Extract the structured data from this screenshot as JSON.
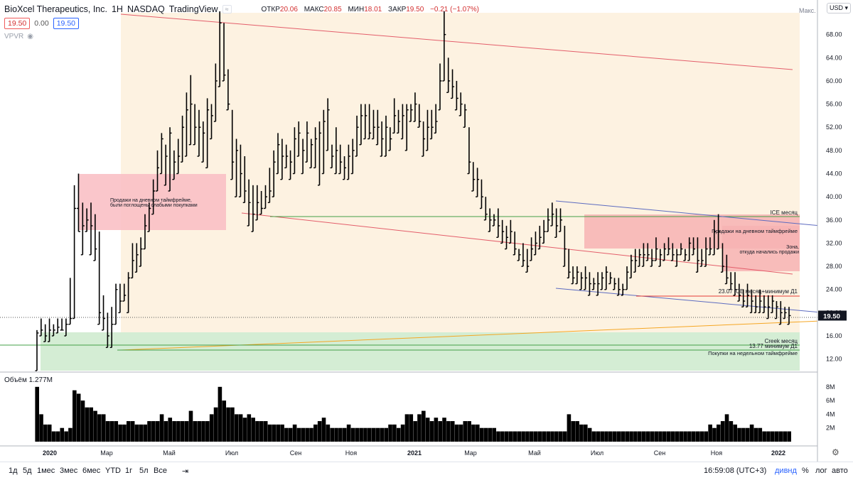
{
  "header": {
    "symbol": "BioXcel Therapeutics, Inc.",
    "interval": "1H",
    "exchange": "NASDAQ",
    "platform": "TradingView",
    "open_label": "ОТКР",
    "open": "20.06",
    "high_label": "МАКС",
    "high": "20.85",
    "low_label": "МИН",
    "low": "18.01",
    "close_label": "ЗАКР",
    "close": "19.50",
    "change": "−0.21 (−1.07%)"
  },
  "pills": {
    "bid": "19.50",
    "spread": "0.00",
    "ask": "19.50"
  },
  "vpvr_label": "VPVR",
  "volume_label": "Объём",
  "volume_value": "1.277M",
  "currency": "USD",
  "max_label": "Макс.",
  "toolbar": {
    "timeframes": [
      "1д",
      "5д",
      "1мес",
      "3мес",
      "6мес",
      "YTD",
      "1г",
      "5л",
      "Все"
    ],
    "clock": "16:59:08 (UTC+3)",
    "dividend": "дивнд",
    "percent": "%",
    "log": "лог",
    "auto": "авто"
  },
  "chart_data": {
    "type": "bar",
    "title": "BioXcel Therapeutics, Inc. · 1H · NASDAQ",
    "ylim": [
      10,
      72
    ],
    "price_ticks": [
      "12.00",
      "16.00",
      "20.00",
      "24.00",
      "28.00",
      "32.00",
      "36.00",
      "40.00",
      "44.00",
      "48.00",
      "52.00",
      "56.00",
      "60.00",
      "64.00",
      "68.00"
    ],
    "volume_ticks": [
      "2M",
      "4M",
      "6M",
      "8M"
    ],
    "x_ticks": [
      "2020",
      "Мар",
      "Май",
      "Июл",
      "Сен",
      "Ноя",
      "2021",
      "Мар",
      "Май",
      "Июл",
      "Сен",
      "Ноя",
      "2022"
    ],
    "last_price": "19.50",
    "bars": [
      [
        10,
        17,
        16.5,
        8
      ],
      [
        16,
        19,
        17,
        4
      ],
      [
        15,
        18,
        16,
        2.5
      ],
      [
        15,
        19,
        17,
        2.5
      ],
      [
        16,
        18,
        17,
        1.5
      ],
      [
        16.5,
        19,
        17.5,
        1.5
      ],
      [
        17,
        19,
        17,
        2
      ],
      [
        16,
        19,
        18,
        1.5
      ],
      [
        18,
        26,
        19,
        2
      ],
      [
        19,
        42,
        38,
        7.5
      ],
      [
        38,
        44,
        34,
        7
      ],
      [
        30,
        39,
        35,
        6
      ],
      [
        34,
        38,
        36,
        5
      ],
      [
        30,
        39,
        35,
        5
      ],
      [
        29,
        37,
        31,
        4.5
      ],
      [
        18,
        34,
        20,
        4
      ],
      [
        17,
        23,
        19,
        4
      ],
      [
        14,
        20,
        16,
        3
      ],
      [
        14,
        21,
        18,
        3
      ],
      [
        18,
        25,
        24,
        3
      ],
      [
        20,
        25,
        22,
        2.5
      ],
      [
        22,
        25,
        23,
        2.5
      ],
      [
        20,
        27,
        26,
        3
      ],
      [
        26,
        32,
        29,
        3
      ],
      [
        27,
        32,
        30,
        2.5
      ],
      [
        28,
        33,
        31,
        2.5
      ],
      [
        31,
        37,
        35,
        2.5
      ],
      [
        34,
        39,
        38,
        3
      ],
      [
        37,
        43,
        41,
        3
      ],
      [
        41,
        48,
        45,
        3
      ],
      [
        44,
        51,
        50,
        4
      ],
      [
        42,
        49,
        47,
        3
      ],
      [
        41,
        52,
        51,
        3.5
      ],
      [
        43,
        48,
        46,
        3
      ],
      [
        44,
        50,
        47,
        3
      ],
      [
        46,
        54,
        52,
        3
      ],
      [
        47,
        58,
        55,
        3
      ],
      [
        49,
        61,
        56,
        4.5
      ],
      [
        49,
        56,
        52,
        3
      ],
      [
        47,
        55,
        52,
        3
      ],
      [
        46,
        53,
        51,
        3
      ],
      [
        45,
        57,
        55,
        3
      ],
      [
        50,
        56,
        54,
        4
      ],
      [
        53,
        63,
        60,
        5
      ],
      [
        59,
        72,
        70,
        8
      ],
      [
        60,
        70,
        61,
        6
      ],
      [
        55,
        62,
        56,
        5
      ],
      [
        43,
        55,
        46,
        5
      ],
      [
        40,
        50,
        48,
        4
      ],
      [
        40,
        49,
        44,
        4
      ],
      [
        39,
        47,
        41,
        3.5
      ],
      [
        35,
        43,
        39,
        4
      ],
      [
        34,
        42,
        37,
        3.5
      ],
      [
        36,
        42,
        39,
        3
      ],
      [
        37,
        41,
        38,
        3
      ],
      [
        38,
        42,
        40,
        3
      ],
      [
        39,
        45,
        41,
        2.5
      ],
      [
        40,
        48,
        46,
        2.5
      ],
      [
        44,
        51,
        49,
        2.5
      ],
      [
        43,
        50,
        47,
        2.5
      ],
      [
        45,
        49,
        47,
        2
      ],
      [
        43,
        48,
        46,
        2
      ],
      [
        44,
        52,
        50,
        2.5
      ],
      [
        47,
        53,
        51,
        2
      ],
      [
        44,
        50,
        48,
        2
      ],
      [
        46,
        53,
        51,
        2
      ],
      [
        45,
        50,
        49,
        2
      ],
      [
        45,
        52,
        50,
        2.5
      ],
      [
        42,
        53,
        51,
        3
      ],
      [
        44,
        55,
        53,
        3.5
      ],
      [
        48,
        57,
        55,
        2.5
      ],
      [
        45,
        49,
        47,
        2
      ],
      [
        44,
        52,
        48,
        2
      ],
      [
        44,
        49,
        46,
        2
      ],
      [
        43,
        47,
        45,
        2
      ],
      [
        43,
        49,
        47,
        2.5
      ],
      [
        44,
        50,
        48,
        2
      ],
      [
        47,
        54,
        52,
        2
      ],
      [
        49,
        56,
        54,
        2
      ],
      [
        50,
        56,
        54,
        2
      ],
      [
        50,
        56,
        51,
        2
      ],
      [
        50,
        55,
        52,
        2
      ],
      [
        49,
        55,
        52,
        2
      ],
      [
        47,
        53,
        50,
        2
      ],
      [
        47,
        54,
        52,
        2
      ],
      [
        48,
        52,
        50,
        2.5
      ],
      [
        51,
        57,
        54,
        2.5
      ],
      [
        51,
        55,
        53,
        2
      ],
      [
        50,
        56,
        54,
        2.5
      ],
      [
        48,
        56,
        55,
        4
      ],
      [
        53,
        56,
        55,
        4
      ],
      [
        53,
        58,
        56,
        3
      ],
      [
        52,
        56,
        53,
        4
      ],
      [
        47,
        53,
        50,
        4.5
      ],
      [
        48,
        55,
        52,
        3.5
      ],
      [
        50,
        55,
        52,
        3
      ],
      [
        51,
        56,
        53,
        3.5
      ],
      [
        55,
        63,
        60,
        3
      ],
      [
        60,
        72,
        68,
        3.5
      ],
      [
        58,
        64,
        60,
        3
      ],
      [
        57,
        62,
        59,
        3
      ],
      [
        55,
        60,
        57,
        2.5
      ],
      [
        54,
        58,
        56,
        2.5
      ],
      [
        52,
        56,
        55,
        3
      ],
      [
        44,
        52,
        46,
        3
      ],
      [
        41,
        46,
        43,
        2.5
      ],
      [
        40,
        45,
        43,
        2.5
      ],
      [
        38,
        43,
        40,
        2
      ],
      [
        36,
        40,
        37,
        2
      ],
      [
        34,
        38,
        36,
        2
      ],
      [
        35,
        37,
        36,
        2
      ],
      [
        33,
        38,
        35,
        1.5
      ],
      [
        32,
        36,
        34,
        1.5
      ],
      [
        31,
        35,
        33,
        1.5
      ],
      [
        32,
        36,
        34,
        1.5
      ],
      [
        30,
        34,
        31,
        1.5
      ],
      [
        29,
        31,
        30,
        1.5
      ],
      [
        28,
        32,
        29,
        1.5
      ],
      [
        27,
        31,
        28,
        1.5
      ],
      [
        29,
        33,
        31,
        1.5
      ],
      [
        30,
        34,
        32,
        1.5
      ],
      [
        31,
        35,
        33,
        1.5
      ],
      [
        32,
        36,
        34,
        1.5
      ],
      [
        34,
        38,
        36,
        1.5
      ],
      [
        35,
        39,
        37,
        1.5
      ],
      [
        33,
        38,
        35,
        1.5
      ],
      [
        34,
        38,
        36,
        1.5
      ],
      [
        28,
        35,
        31,
        1.5
      ],
      [
        26,
        31,
        27,
        4
      ],
      [
        25,
        28,
        26,
        3
      ],
      [
        25,
        28,
        27,
        3
      ],
      [
        24,
        27,
        26,
        2.5
      ],
      [
        24,
        28,
        26,
        2.5
      ],
      [
        23,
        27,
        25,
        2
      ],
      [
        24,
        26,
        25,
        1.5
      ],
      [
        23,
        27,
        25,
        1.5
      ],
      [
        24,
        27,
        26,
        1.5
      ],
      [
        24,
        28,
        27,
        1.5
      ],
      [
        25,
        27,
        26,
        1.5
      ],
      [
        24,
        26,
        25,
        1.5
      ],
      [
        23,
        26,
        24,
        1.5
      ],
      [
        23,
        25,
        24,
        1.5
      ],
      [
        24,
        28,
        27,
        1.5
      ],
      [
        26,
        30,
        29,
        1.5
      ],
      [
        27,
        31,
        29,
        1.5
      ],
      [
        28,
        31,
        30,
        1.5
      ],
      [
        28,
        32,
        30,
        1.5
      ],
      [
        29,
        32,
        30,
        1.5
      ],
      [
        28,
        31,
        29,
        1.5
      ],
      [
        29,
        33,
        31,
        1.5
      ],
      [
        28,
        31,
        30,
        1.5
      ],
      [
        29,
        32,
        31,
        1.5
      ],
      [
        30,
        33,
        31,
        1.5
      ],
      [
        29,
        32,
        30,
        1.5
      ],
      [
        28,
        31,
        30,
        1.5
      ],
      [
        30,
        32,
        31,
        1.5
      ],
      [
        29,
        31,
        30,
        1.5
      ],
      [
        29,
        33,
        32,
        1.5
      ],
      [
        30,
        33,
        31,
        1.5
      ],
      [
        27,
        33,
        29,
        1.5
      ],
      [
        28,
        31,
        29,
        1.5
      ],
      [
        28,
        33,
        31,
        1.5
      ],
      [
        30,
        33,
        31,
        2.5
      ],
      [
        30,
        36,
        34,
        2
      ],
      [
        31,
        37,
        34,
        2.5
      ],
      [
        27,
        32,
        28,
        3
      ],
      [
        25,
        30,
        26,
        4
      ],
      [
        24,
        27,
        25,
        3
      ],
      [
        23,
        27,
        24,
        2.5
      ],
      [
        22,
        25,
        23,
        2
      ],
      [
        21,
        24,
        22,
        2
      ],
      [
        21,
        25,
        23,
        2
      ],
      [
        20,
        24,
        22,
        2.5
      ],
      [
        20,
        23,
        21,
        2
      ],
      [
        20,
        24,
        22,
        2
      ],
      [
        20,
        23,
        21,
        1.5
      ],
      [
        19,
        23,
        21,
        1.5
      ],
      [
        20,
        23,
        22,
        1.5
      ],
      [
        19,
        22,
        21,
        1.5
      ],
      [
        18,
        22,
        20,
        1.5
      ],
      [
        19,
        21,
        20,
        1.5
      ],
      [
        18,
        21,
        19.5,
        1.5
      ]
    ],
    "annotations": [
      "Продажи на дневном таймфрейме, были поглощены слабыми покупками",
      "ICE месяц",
      "Продажи на дневном таймфрейме",
      "Зона, откуда начались продажи",
      "23.07 ICE месяц+минимум Д1",
      "Creek месяц",
      "13.77 минимум Д1",
      "Покупки на недельном таймфрейме"
    ]
  }
}
